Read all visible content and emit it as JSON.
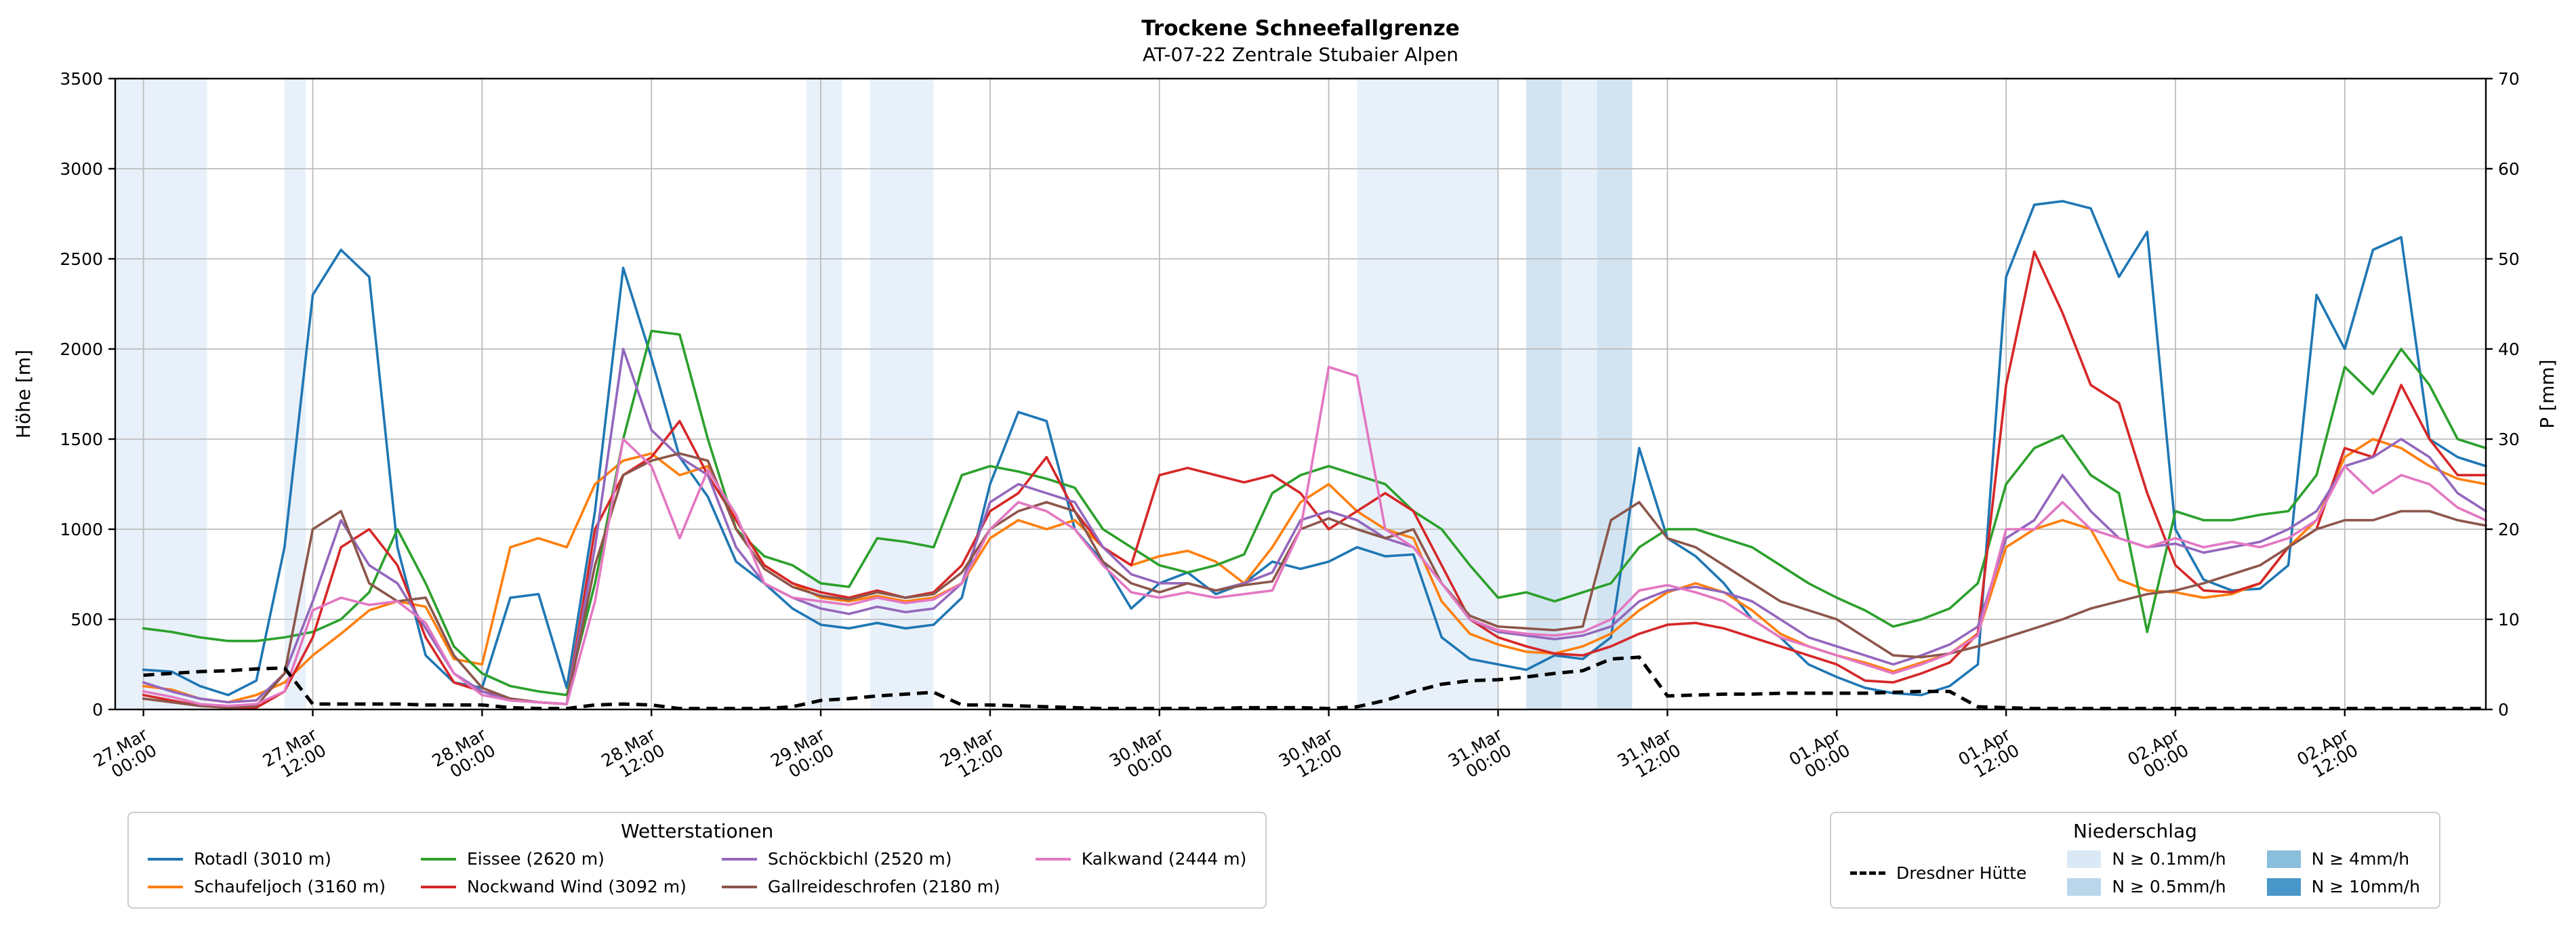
{
  "title": "Trockene Schneefallgrenze",
  "subtitle": "AT-07-22 Zentrale Stubaier Alpen",
  "axes": {
    "ylabel_left": "Höhe [m]",
    "ylabel_right": "P [mm]",
    "yticks_left": [
      "0",
      "500",
      "1000",
      "1500",
      "2000",
      "2500",
      "3000",
      "3500"
    ],
    "yticks_right": [
      "0",
      "10",
      "20",
      "30",
      "40",
      "50",
      "60",
      "70"
    ]
  },
  "chart_data": {
    "type": "line",
    "title": "Trockene Schneefallgrenze",
    "subtitle": "AT-07-22 Zentrale Stubaier Alpen",
    "xlabel": "",
    "ylabel_left": "Höhe [m]",
    "ylabel_right": "P [mm]",
    "x_unit": "hours since 27.Mar 00:00",
    "xlim_hours": [
      -2,
      166
    ],
    "ylim_left": [
      0,
      3500
    ],
    "ylim_right": [
      0,
      70
    ],
    "grid": true,
    "legend_left": {
      "title": "Wetterstationen"
    },
    "legend_right": {
      "title": "Niederschlag"
    },
    "xticks": [
      {
        "t": 0,
        "date": "27.Mar",
        "time": "00:00"
      },
      {
        "t": 12,
        "date": "27.Mar",
        "time": "12:00"
      },
      {
        "t": 24,
        "date": "28.Mar",
        "time": "00:00"
      },
      {
        "t": 36,
        "date": "28.Mar",
        "time": "12:00"
      },
      {
        "t": 48,
        "date": "29.Mar",
        "time": "00:00"
      },
      {
        "t": 60,
        "date": "29.Mar",
        "time": "12:00"
      },
      {
        "t": 72,
        "date": "30.Mar",
        "time": "00:00"
      },
      {
        "t": 84,
        "date": "30.Mar",
        "time": "12:00"
      },
      {
        "t": 96,
        "date": "31.Mar",
        "time": "00:00"
      },
      {
        "t": 108,
        "date": "31.Mar",
        "time": "12:00"
      },
      {
        "t": 120,
        "date": "01.Apr",
        "time": "00:00"
      },
      {
        "t": 132,
        "date": "01.Apr",
        "time": "12:00"
      },
      {
        "t": 144,
        "date": "02.Apr",
        "time": "00:00"
      },
      {
        "t": 156,
        "date": "02.Apr",
        "time": "12:00"
      }
    ],
    "x": [
      0,
      2,
      4,
      6,
      8,
      10,
      12,
      14,
      16,
      18,
      20,
      22,
      24,
      26,
      28,
      30,
      32,
      34,
      36,
      38,
      40,
      42,
      44,
      46,
      48,
      50,
      52,
      54,
      56,
      58,
      60,
      62,
      64,
      66,
      68,
      70,
      72,
      74,
      76,
      78,
      80,
      82,
      84,
      86,
      88,
      90,
      92,
      94,
      96,
      98,
      100,
      102,
      104,
      106,
      108,
      110,
      112,
      114,
      116,
      118,
      120,
      122,
      124,
      126,
      128,
      130,
      132,
      134,
      136,
      138,
      140,
      142,
      144,
      146,
      148,
      150,
      152,
      154,
      156,
      158,
      160,
      162,
      164,
      166
    ],
    "series": [
      {
        "name": "Rotadl (3010 m)",
        "color": "#1f77b4",
        "axis": "left",
        "values": [
          220,
          210,
          130,
          80,
          160,
          900,
          2300,
          2550,
          2400,
          900,
          300,
          150,
          120,
          620,
          640,
          120,
          1100,
          2450,
          1950,
          1400,
          1180,
          820,
          700,
          560,
          470,
          450,
          480,
          450,
          470,
          620,
          1250,
          1650,
          1600,
          1000,
          820,
          560,
          700,
          760,
          640,
          700,
          820,
          780,
          820,
          900,
          850,
          860,
          400,
          280,
          250,
          220,
          300,
          280,
          400,
          1450,
          950,
          850,
          700,
          500,
          400,
          250,
          180,
          120,
          90,
          80,
          130,
          250,
          2400,
          2800,
          2820,
          2780,
          2400,
          2650,
          1000,
          720,
          660,
          670,
          800,
          2300,
          2000,
          2550,
          2620,
          1500,
          1400,
          1350
        ]
      },
      {
        "name": "Schaufeljoch (3160 m)",
        "color": "#ff7f0e",
        "axis": "left",
        "values": [
          130,
          110,
          60,
          40,
          80,
          150,
          300,
          420,
          550,
          600,
          570,
          280,
          250,
          900,
          950,
          900,
          1250,
          1380,
          1420,
          1300,
          1350,
          1050,
          800,
          700,
          620,
          600,
          630,
          600,
          620,
          700,
          950,
          1050,
          1000,
          1050,
          900,
          800,
          850,
          880,
          820,
          700,
          900,
          1150,
          1250,
          1100,
          1000,
          950,
          600,
          420,
          360,
          320,
          310,
          350,
          420,
          550,
          650,
          700,
          650,
          550,
          420,
          350,
          300,
          260,
          210,
          260,
          310,
          420,
          900,
          1000,
          1050,
          1000,
          720,
          660,
          650,
          620,
          640,
          700,
          900,
          1050,
          1400,
          1500,
          1450,
          1350,
          1280,
          1250
        ]
      },
      {
        "name": "Eissee (2620 m)",
        "color": "#2ca02c",
        "axis": "left",
        "values": [
          450,
          430,
          400,
          380,
          380,
          400,
          430,
          500,
          650,
          1000,
          700,
          350,
          200,
          130,
          100,
          80,
          700,
          1500,
          2100,
          2080,
          1500,
          1000,
          850,
          800,
          700,
          680,
          950,
          930,
          900,
          1300,
          1350,
          1320,
          1280,
          1230,
          1000,
          900,
          800,
          760,
          800,
          860,
          1200,
          1300,
          1350,
          1300,
          1250,
          1100,
          1000,
          800,
          620,
          650,
          600,
          650,
          700,
          900,
          1000,
          1000,
          950,
          900,
          800,
          700,
          620,
          550,
          460,
          500,
          560,
          700,
          1250,
          1450,
          1520,
          1300,
          1200,
          430,
          1100,
          1050,
          1050,
          1080,
          1100,
          1300,
          1900,
          1750,
          2000,
          1800,
          1500,
          1450
        ]
      },
      {
        "name": "Nockwand Wind (3092 m)",
        "color": "#d62728",
        "axis": "left",
        "values": [
          80,
          50,
          20,
          10,
          10,
          100,
          400,
          900,
          1000,
          800,
          400,
          150,
          100,
          60,
          40,
          30,
          1000,
          1300,
          1400,
          1600,
          1300,
          1050,
          800,
          700,
          650,
          620,
          660,
          620,
          650,
          800,
          1100,
          1200,
          1400,
          1100,
          900,
          800,
          1300,
          1340,
          1300,
          1260,
          1300,
          1200,
          1000,
          1100,
          1200,
          1100,
          800,
          500,
          400,
          350,
          310,
          300,
          350,
          420,
          470,
          480,
          450,
          400,
          350,
          300,
          250,
          160,
          150,
          200,
          260,
          420,
          1800,
          2540,
          2200,
          1800,
          1700,
          1200,
          800,
          660,
          650,
          700,
          900,
          1000,
          1450,
          1400,
          1800,
          1500,
          1300,
          1300
        ]
      },
      {
        "name": "Schöckbichl (2520 m)",
        "color": "#9467bd",
        "axis": "left",
        "values": [
          150,
          100,
          60,
          40,
          50,
          200,
          600,
          1050,
          800,
          700,
          450,
          200,
          100,
          50,
          40,
          30,
          900,
          2000,
          1550,
          1400,
          1300,
          900,
          700,
          620,
          560,
          530,
          570,
          540,
          560,
          700,
          1150,
          1250,
          1200,
          1150,
          900,
          750,
          700,
          700,
          660,
          700,
          760,
          1050,
          1100,
          1050,
          950,
          900,
          700,
          500,
          430,
          410,
          390,
          410,
          460,
          600,
          660,
          680,
          650,
          600,
          500,
          400,
          350,
          300,
          250,
          300,
          360,
          460,
          950,
          1050,
          1300,
          1100,
          950,
          900,
          920,
          870,
          900,
          930,
          1000,
          1100,
          1350,
          1400,
          1500,
          1400,
          1200,
          1100
        ]
      },
      {
        "name": "Gallreideschrofen (2180 m)",
        "color": "#8c564b",
        "axis": "left",
        "values": [
          60,
          40,
          20,
          10,
          20,
          200,
          1000,
          1100,
          700,
          600,
          620,
          300,
          120,
          60,
          40,
          30,
          800,
          1300,
          1380,
          1420,
          1380,
          1000,
          780,
          680,
          630,
          610,
          650,
          620,
          640,
          760,
          1000,
          1100,
          1150,
          1100,
          820,
          700,
          650,
          700,
          660,
          690,
          710,
          1000,
          1060,
          1000,
          950,
          1000,
          700,
          520,
          460,
          450,
          440,
          460,
          1050,
          1150,
          950,
          900,
          800,
          700,
          600,
          550,
          500,
          400,
          300,
          290,
          310,
          350,
          400,
          450,
          500,
          560,
          600,
          640,
          660,
          700,
          750,
          800,
          900,
          1000,
          1050,
          1050,
          1100,
          1100,
          1050,
          1020
        ]
      },
      {
        "name": "Kalkwand (2444 m)",
        "color": "#e377c2",
        "axis": "left",
        "values": [
          100,
          70,
          30,
          20,
          30,
          100,
          550,
          620,
          580,
          600,
          480,
          200,
          80,
          50,
          40,
          30,
          600,
          1500,
          1350,
          950,
          1330,
          1080,
          700,
          620,
          600,
          580,
          620,
          590,
          610,
          700,
          1000,
          1150,
          1100,
          1000,
          800,
          650,
          620,
          650,
          620,
          640,
          660,
          1000,
          1900,
          1850,
          1000,
          900,
          700,
          500,
          440,
          420,
          410,
          430,
          500,
          660,
          690,
          650,
          600,
          500,
          400,
          350,
          300,
          250,
          200,
          250,
          310,
          410,
          1000,
          1000,
          1150,
          1000,
          950,
          900,
          950,
          900,
          930,
          900,
          950,
          1050,
          1350,
          1200,
          1300,
          1250,
          1120,
          1050
        ]
      }
    ],
    "precip_line": {
      "name": "Dresdner Hütte",
      "color": "#000000",
      "style": "dashed",
      "axis": "right",
      "values": [
        3.8,
        4.0,
        4.2,
        4.3,
        4.5,
        4.6,
        0.6,
        0.6,
        0.6,
        0.6,
        0.5,
        0.5,
        0.5,
        0.2,
        0.1,
        0.1,
        0.5,
        0.6,
        0.5,
        0.1,
        0.1,
        0.1,
        0.1,
        0.3,
        1.0,
        1.2,
        1.5,
        1.7,
        1.9,
        0.5,
        0.5,
        0.4,
        0.3,
        0.2,
        0.1,
        0.1,
        0.1,
        0.1,
        0.1,
        0.2,
        0.2,
        0.2,
        0.1,
        0.3,
        1.0,
        2.0,
        2.8,
        3.2,
        3.3,
        3.6,
        4.0,
        4.3,
        5.6,
        5.8,
        1.5,
        1.6,
        1.7,
        1.7,
        1.8,
        1.8,
        1.8,
        1.8,
        1.9,
        2.0,
        2.0,
        0.3,
        0.2,
        0.1,
        0.1,
        0.1,
        0.1,
        0.1,
        0.1,
        0.1,
        0.1,
        0.1,
        0.1,
        0.1,
        0.1,
        0.1,
        0.1,
        0.1,
        0.1,
        0.1
      ]
    },
    "precip_bands": {
      "levels": [
        {
          "label": "N ≥ 0.1mm/h",
          "color": "#dbe9f6"
        },
        {
          "label": "N ≥ 0.5mm/h",
          "color": "#bad6eb"
        },
        {
          "label": "N ≥ 4mm/h",
          "color": "#89bedc"
        },
        {
          "label": "N ≥ 10mm/h",
          "color": "#4997c9"
        }
      ],
      "spans": [
        {
          "t0": -2,
          "t1": 4.5,
          "level": 0
        },
        {
          "t0": 10,
          "t1": 11.5,
          "level": 0
        },
        {
          "t0": 47,
          "t1": 49.5,
          "level": 0
        },
        {
          "t0": 51.5,
          "t1": 56,
          "level": 0
        },
        {
          "t0": 86,
          "t1": 96,
          "level": 0
        },
        {
          "t0": 98,
          "t1": 100.5,
          "level": 1
        },
        {
          "t0": 100.5,
          "t1": 103,
          "level": 0
        },
        {
          "t0": 103,
          "t1": 105.5,
          "level": 1
        }
      ]
    }
  }
}
